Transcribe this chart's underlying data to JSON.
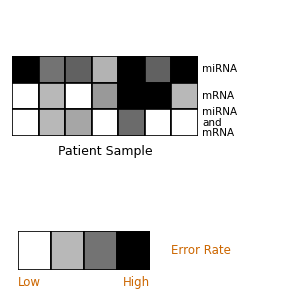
{
  "grid": [
    [
      0.0,
      0.45,
      0.38,
      0.7,
      0.0,
      0.38,
      0.0
    ],
    [
      1.0,
      0.72,
      1.0,
      0.6,
      0.0,
      0.0,
      0.72
    ],
    [
      1.0,
      0.72,
      0.65,
      1.0,
      0.42,
      1.0,
      1.0
    ]
  ],
  "row_labels": [
    "miRNA",
    "mRNA",
    "miRNA\nand\nmRNA"
  ],
  "xlabel": "Patient Sample",
  "colorbar_values": [
    1.0,
    0.72,
    0.45,
    0.0
  ],
  "colorbar_label": "Error Rate",
  "low_label": "Low",
  "high_label": "High",
  "row_label_color": "#000000",
  "xlabel_color": "#000000",
  "accent_color": "#cc6600",
  "background_color": "#ffffff"
}
